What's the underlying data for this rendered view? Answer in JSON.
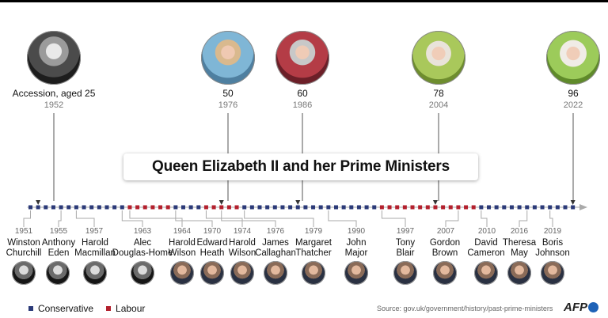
{
  "title": "Queen Elizabeth II and her Prime Ministers",
  "colors": {
    "conservative": "#2b3a78",
    "labour": "#b3202d",
    "axis": "#aaaaaa"
  },
  "queen_milestones": [
    {
      "label": "Accession, aged 25",
      "year": "1952",
      "photo": "queen-1952-photo-icon"
    },
    {
      "label": "50",
      "year": "1976",
      "photo": "queen-1976-photo-icon"
    },
    {
      "label": "60",
      "year": "1986",
      "photo": "queen-1986-photo-icon"
    },
    {
      "label": "78",
      "year": "2004",
      "photo": "queen-2004-photo-icon"
    },
    {
      "label": "96",
      "year": "2022",
      "photo": "queen-2022-photo-icon"
    }
  ],
  "timeline": {
    "start_year": 1951,
    "end_year": 2022,
    "periods": [
      {
        "from": 1951,
        "to": 1963,
        "party": "Conservative"
      },
      {
        "from": 1964,
        "to": 1969,
        "party": "Labour"
      },
      {
        "from": 1970,
        "to": 1973,
        "party": "Conservative"
      },
      {
        "from": 1974,
        "to": 1978,
        "party": "Labour"
      },
      {
        "from": 1979,
        "to": 1996,
        "party": "Conservative"
      },
      {
        "from": 1997,
        "to": 2009,
        "party": "Labour"
      },
      {
        "from": 2010,
        "to": 2022,
        "party": "Conservative"
      }
    ]
  },
  "prime_ministers": [
    {
      "year": "1951",
      "name": "Winston Churchill",
      "line1": "Winston",
      "line2": "Churchill",
      "party": "Conservative"
    },
    {
      "year": "1955",
      "name": "Anthony Eden",
      "line1": "Anthony",
      "line2": "Eden",
      "party": "Conservative"
    },
    {
      "year": "1957",
      "name": "Harold Macmillan",
      "line1": "Harold",
      "line2": "Macmillan",
      "party": "Conservative"
    },
    {
      "year": "1963",
      "name": "Alec Douglas-Home",
      "line1": "Alec",
      "line2": "Douglas-Home",
      "party": "Conservative"
    },
    {
      "year": "1964",
      "name": "Harold Wilson",
      "line1": "Harold",
      "line2": "Wilson",
      "party": "Labour"
    },
    {
      "year": "1970",
      "name": "Edward Heath",
      "line1": "Edward",
      "line2": "Heath",
      "party": "Conservative"
    },
    {
      "year": "1974",
      "name": "Harold Wilson",
      "line1": "Harold",
      "line2": "Wilson",
      "party": "Labour"
    },
    {
      "year": "1976",
      "name": "James Callaghan",
      "line1": "James",
      "line2": "Callaghan",
      "party": "Labour"
    },
    {
      "year": "1979",
      "name": "Margaret Thatcher",
      "line1": "Margaret",
      "line2": "Thatcher",
      "party": "Conservative"
    },
    {
      "year": "1990",
      "name": "John Major",
      "line1": "John",
      "line2": "Major",
      "party": "Conservative"
    },
    {
      "year": "1997",
      "name": "Tony Blair",
      "line1": "Tony",
      "line2": "Blair",
      "party": "Labour"
    },
    {
      "year": "2007",
      "name": "Gordon Brown",
      "line1": "Gordon",
      "line2": "Brown",
      "party": "Labour"
    },
    {
      "year": "2010",
      "name": "David Cameron",
      "line1": "David",
      "line2": "Cameron",
      "party": "Conservative"
    },
    {
      "year": "2016",
      "name": "Theresa May",
      "line1": "Theresa",
      "line2": "May",
      "party": "Conservative"
    },
    {
      "year": "2019",
      "name": "Boris Johnson",
      "line1": "Boris",
      "line2": "Johnson",
      "party": "Conservative"
    }
  ],
  "legend": [
    {
      "label": "Conservative",
      "color": "#2b3a78"
    },
    {
      "label": "Labour",
      "color": "#b3202d"
    }
  ],
  "source": "Source: gov.uk/government/history/past-prime-ministers",
  "credit": "AFP"
}
